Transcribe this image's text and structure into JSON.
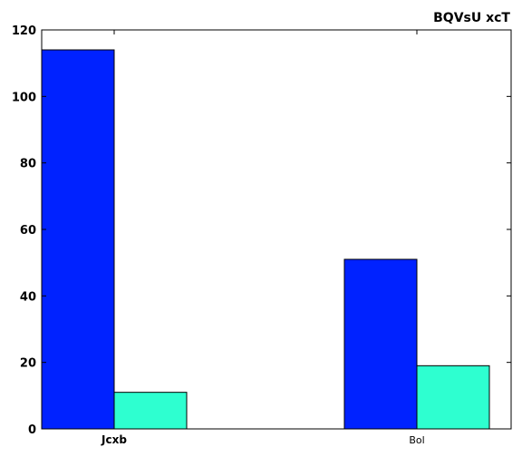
{
  "chart_data": {
    "type": "bar",
    "title": "BQVsU xcT",
    "categories": [
      "Jcxb",
      "Bol"
    ],
    "category_bold": [
      true,
      false
    ],
    "series": [
      {
        "values": [
          114,
          51
        ],
        "color": "#0022ff"
      },
      {
        "values": [
          11,
          19
        ],
        "color": "#2effd0"
      }
    ],
    "ylim": [
      0,
      120
    ],
    "yticks": [
      0,
      20,
      40,
      60,
      80,
      100,
      120
    ],
    "ytick_labels": [
      "0",
      "20",
      "40",
      "60",
      "80",
      "100",
      "120"
    ],
    "grid": false
  }
}
